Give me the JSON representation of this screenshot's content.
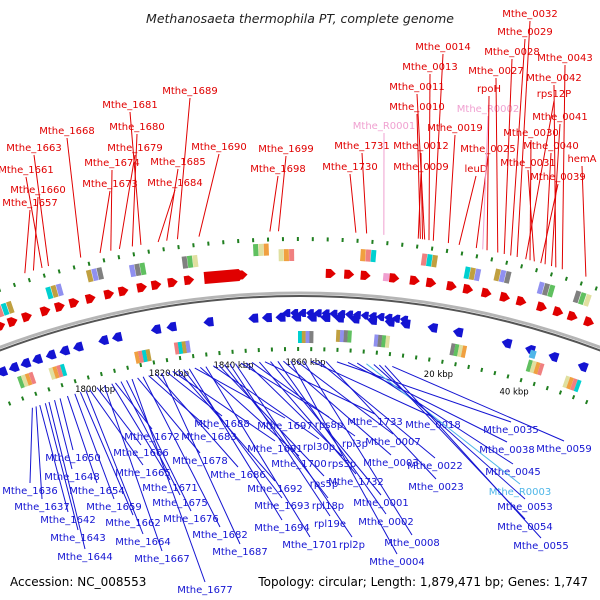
{
  "title": "Methanosaeta thermophila PT, complete genome",
  "footer": {
    "accession": "Accession: NC_008553",
    "summary": "Topology: circular; Length: 1,879,471 bp; Genes: 1,747"
  },
  "colors": {
    "forward": "#e00000",
    "reverse": "#1414d2",
    "rna_forward": "#f0a0d0",
    "rna_reverse": "#4fb6e8",
    "backbone": "#888888",
    "tick": "#207f20"
  },
  "ticks": [
    "1800 kbp",
    "1820 kbp",
    "1840 kbp",
    "1860 kbp",
    "20 kbp",
    "40 kbp"
  ],
  "top_labels": [
    "Mthe_1657",
    "Mthe_1660",
    "Mthe_1661",
    "Mthe_1663",
    "Mthe_1668",
    "Mthe_1673",
    "Mthe_1674",
    "Mthe_1679",
    "Mthe_1680",
    "Mthe_1681",
    "Mthe_1684",
    "Mthe_1685",
    "Mthe_1689",
    "Mthe_1690",
    "Mthe_1698",
    "Mthe_1699",
    "Mthe_1730",
    "Mthe_1731",
    "Mthe_R0001",
    "Mthe_0009",
    "Mthe_0012",
    "Mthe_0010",
    "Mthe_0011",
    "Mthe_0013",
    "Mthe_0014",
    "Mthe_0019",
    "leuD",
    "Mthe_0025",
    "Mthe_R0002",
    "rpoH",
    "Mthe_0027",
    "Mthe_0028",
    "Mthe_0029",
    "Mthe_0032",
    "rps12P",
    "Mthe_0030",
    "Mthe_0031",
    "Mthe_0039",
    "Mthe_0040",
    "Mthe_0041",
    "Mthe_0042",
    "Mthe_0043",
    "hemA"
  ],
  "bottom_labels": [
    "Mthe_1636",
    "Mthe_1637",
    "Mthe_1642",
    "Mthe_1643",
    "Mthe_1644",
    "Mthe_1648",
    "Mthe_1650",
    "Mthe_1654",
    "Mthe_1659",
    "Mthe_1662",
    "Mthe_1664",
    "Mthe_1665",
    "Mthe_1666",
    "Mthe_1667",
    "Mthe_1671",
    "Mthe_1672",
    "Mthe_1675",
    "Mthe_1676",
    "Mthe_1677",
    "Mthe_1678",
    "Mthe_1682",
    "Mthe_1683",
    "Mthe_1686",
    "Mthe_1687",
    "Mthe_1688",
    "Mthe_1691",
    "Mthe_1692",
    "Mthe_1693",
    "Mthe_1694",
    "Mthe_1697",
    "Mthe_1700",
    "Mthe_1701",
    "rpl30p",
    "rps5p",
    "rpl18p",
    "rpl19e",
    "rpl2p",
    "rps8p",
    "rps3p",
    "rpl3p",
    "Mthe_1732",
    "Mthe_1733",
    "Mthe_0001",
    "Mthe_0002",
    "Mthe_0003",
    "Mthe_0004",
    "Mthe_0007",
    "Mthe_0008",
    "Mthe_0018",
    "Mthe_0022",
    "Mthe_0023",
    "Mthe_0035",
    "Mthe_0038",
    "Mthe_0045",
    "Mthe_R0003",
    "Mthe_0053",
    "Mthe_0054",
    "Mthe_0055",
    "Mthe_0059"
  ]
}
